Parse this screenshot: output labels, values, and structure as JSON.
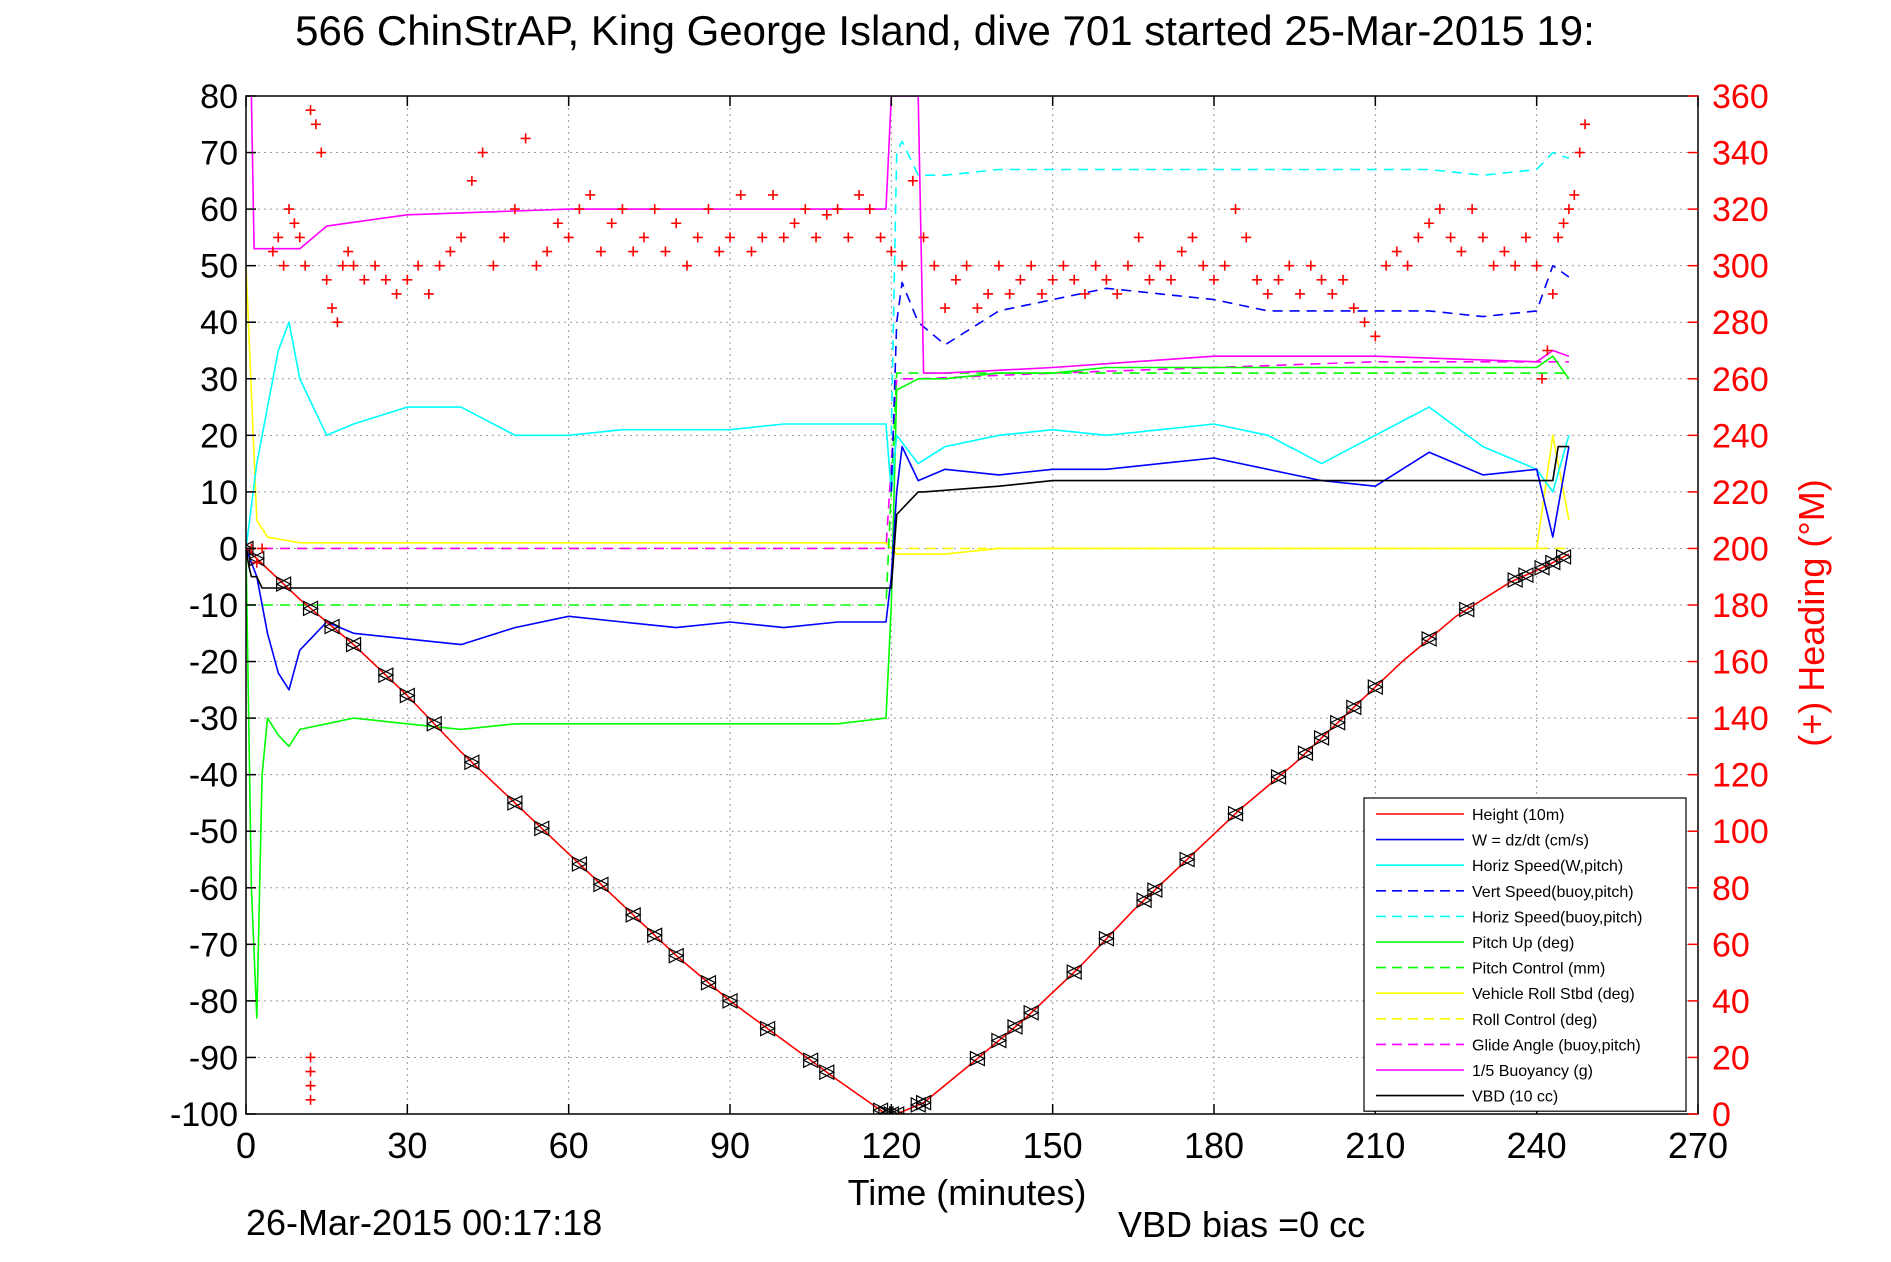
{
  "chart_data": {
    "type": "line",
    "title": "566 ChinStrAP, King George Island, dive 701 started 25-Mar-2015 19:",
    "xlabel": "Time (minutes)",
    "ylabel_right": "(+) Heading (°M)",
    "xlim": [
      0,
      270
    ],
    "ylim": [
      -100,
      80
    ],
    "ylim_right": [
      0,
      360
    ],
    "x_ticks": [
      "0",
      "30",
      "60",
      "90",
      "120",
      "150",
      "180",
      "210",
      "240",
      "270"
    ],
    "y_ticks": [
      "80",
      "70",
      "60",
      "50",
      "40",
      "30",
      "20",
      "10",
      "0",
      "-10",
      "-20",
      "-30",
      "-40",
      "-50",
      "-60",
      "-70",
      "-80",
      "-90",
      "-100"
    ],
    "y_right_ticks": [
      "360",
      "340",
      "320",
      "300",
      "280",
      "260",
      "240",
      "220",
      "200",
      "180",
      "160",
      "140",
      "120",
      "100",
      "80",
      "60",
      "40",
      "20",
      "0"
    ],
    "grid": true,
    "legend_position": "bottom-right",
    "footer_date": "26-Mar-2015 00:17:18",
    "footer_vbd": "VBD bias =0 cc",
    "colors": {
      "red": "#ff0000",
      "blue": "#0000ff",
      "cyan": "#00ffff",
      "green": "#00ff00",
      "yellow": "#ffff00",
      "magenta": "#ff00ff",
      "black": "#000000"
    },
    "series": [
      {
        "name": "Height (10m)",
        "color": "#ff0000",
        "dash": false,
        "x": [
          0,
          10,
          20,
          30,
          40,
          50,
          60,
          70,
          80,
          90,
          100,
          110,
          119,
          121,
          126,
          135,
          145,
          155,
          165,
          175,
          185,
          195,
          205,
          215,
          225,
          235,
          242,
          246
        ],
        "y": [
          0,
          -9,
          -17,
          -26,
          -36,
          -45,
          -54,
          -63,
          -72,
          -80,
          -87,
          -94,
          -100,
          -100,
          -98,
          -91,
          -83,
          -74,
          -64,
          -55,
          -46,
          -38,
          -29,
          -20,
          -12,
          -6,
          -3,
          -1
        ]
      },
      {
        "name": "W = dz/dt (cm/s)",
        "color": "#0000ff",
        "dash": false,
        "x": [
          0,
          2,
          4,
          6,
          8,
          10,
          15,
          20,
          30,
          40,
          50,
          60,
          70,
          80,
          90,
          100,
          110,
          119,
          120,
          121,
          122,
          125,
          130,
          140,
          150,
          160,
          170,
          180,
          190,
          200,
          210,
          220,
          230,
          240,
          243,
          246
        ],
        "y": [
          0,
          -5,
          -15,
          -22,
          -25,
          -18,
          -13,
          -15,
          -16,
          -17,
          -14,
          -12,
          -13,
          -14,
          -13,
          -14,
          -13,
          -13,
          -5,
          10,
          18,
          12,
          14,
          13,
          14,
          14,
          15,
          16,
          14,
          12,
          11,
          17,
          13,
          14,
          2,
          18
        ]
      },
      {
        "name": "Horiz Speed(W,pitch)",
        "color": "#00ffff",
        "dash": false,
        "x": [
          0,
          2,
          4,
          6,
          8,
          10,
          15,
          20,
          30,
          40,
          50,
          60,
          70,
          80,
          90,
          100,
          110,
          119,
          120,
          121,
          125,
          130,
          140,
          150,
          160,
          170,
          180,
          190,
          200,
          210,
          220,
          230,
          240,
          243,
          246
        ],
        "y": [
          0,
          15,
          25,
          35,
          40,
          30,
          20,
          22,
          25,
          25,
          20,
          20,
          21,
          21,
          21,
          22,
          22,
          22,
          10,
          20,
          15,
          18,
          20,
          21,
          20,
          21,
          22,
          20,
          15,
          20,
          25,
          18,
          14,
          10,
          20
        ]
      },
      {
        "name": "Vert Speed(buoy,pitch)",
        "color": "#0000ff",
        "dash": true,
        "x": [
          120,
          121,
          122,
          125,
          130,
          140,
          150,
          160,
          170,
          180,
          190,
          200,
          210,
          220,
          230,
          240,
          243,
          246
        ],
        "y": [
          10,
          40,
          47,
          40,
          36,
          42,
          44,
          46,
          45,
          44,
          42,
          42,
          42,
          42,
          41,
          42,
          50,
          48
        ]
      },
      {
        "name": "Horiz Speed(buoy,pitch)",
        "color": "#00ffff",
        "dash": true,
        "x": [
          120,
          121,
          122,
          125,
          130,
          140,
          150,
          160,
          170,
          180,
          190,
          200,
          210,
          220,
          230,
          240,
          243,
          246
        ],
        "y": [
          20,
          70,
          72,
          66,
          66,
          67,
          67,
          67,
          67,
          67,
          67,
          67,
          67,
          67,
          66,
          67,
          70,
          69
        ]
      },
      {
        "name": "Pitch Up (deg)",
        "color": "#00ff00",
        "dash": false,
        "x": [
          0,
          1,
          2,
          3,
          4,
          6,
          8,
          10,
          15,
          20,
          30,
          40,
          50,
          60,
          70,
          80,
          90,
          100,
          110,
          119,
          120,
          121,
          125,
          130,
          140,
          150,
          160,
          170,
          180,
          190,
          200,
          210,
          220,
          230,
          240,
          243,
          246
        ],
        "y": [
          0,
          -60,
          -83,
          -40,
          -30,
          -33,
          -35,
          -32,
          -31,
          -30,
          -31,
          -32,
          -31,
          -31,
          -31,
          -31,
          -31,
          -31,
          -31,
          -30,
          -10,
          28,
          30,
          30,
          31,
          31,
          32,
          32,
          32,
          32,
          32,
          32,
          32,
          32,
          32,
          34,
          30
        ]
      },
      {
        "name": "Pitch Control (mm)",
        "color": "#00ff00",
        "dash": true,
        "x": [
          0,
          2,
          4,
          10,
          30,
          60,
          90,
          119,
          121,
          125,
          150,
          180,
          210,
          240,
          246
        ],
        "y": [
          -10,
          -10,
          -10,
          -10,
          -10,
          -10,
          -10,
          -10,
          31,
          31,
          31,
          31,
          31,
          31,
          31
        ]
      },
      {
        "name": "Vehicle Roll Stbd (deg)",
        "color": "#ffff00",
        "dash": false,
        "x": [
          0,
          2,
          4,
          10,
          20,
          30,
          40,
          50,
          60,
          70,
          80,
          90,
          100,
          110,
          119,
          121,
          125,
          130,
          140,
          150,
          160,
          170,
          180,
          190,
          200,
          210,
          220,
          230,
          240,
          243,
          246
        ],
        "y": [
          50,
          5,
          2,
          1,
          1,
          1,
          1,
          1,
          1,
          1,
          1,
          1,
          1,
          1,
          1,
          -1,
          -1,
          -1,
          0,
          0,
          0,
          0,
          0,
          0,
          0,
          0,
          0,
          0,
          0,
          20,
          5
        ]
      },
      {
        "name": "Roll Control (deg)",
        "color": "#ffff00",
        "dash": true,
        "x": [
          0,
          30,
          60,
          90,
          119,
          121,
          150,
          180,
          210,
          240,
          246
        ],
        "y": [
          0,
          0,
          0,
          0,
          0,
          0,
          0,
          0,
          0,
          0,
          0
        ]
      },
      {
        "name": "Glide Angle (buoy,pitch)",
        "color": "#ff00ff",
        "dash": true,
        "x": [
          0,
          30,
          60,
          90,
          119,
          121,
          125,
          150,
          180,
          210,
          240,
          246
        ],
        "y": [
          0,
          0,
          0,
          0,
          0,
          30,
          30,
          31,
          32,
          33,
          33,
          33
        ]
      },
      {
        "name": "1/5 Buoyancy (g)",
        "color": "#ff00ff",
        "dash": false,
        "x": [
          0,
          1,
          1.5,
          5,
          10,
          15,
          30,
          60,
          90,
          119,
          120,
          125,
          126,
          130,
          150,
          180,
          210,
          240,
          243,
          246
        ],
        "y": [
          80,
          80,
          53,
          53,
          53,
          57,
          59,
          60,
          60,
          60,
          80,
          80,
          31,
          31,
          32,
          34,
          34,
          33,
          35,
          34
        ]
      },
      {
        "name": "VBD (10 cc)",
        "color": "#000000",
        "dash": false,
        "x": [
          0,
          0.5,
          1,
          2,
          2.5,
          3,
          30,
          60,
          90,
          119,
          120,
          121,
          125,
          126,
          140,
          150,
          160,
          170,
          180,
          200,
          210,
          220,
          230,
          235,
          236,
          240,
          243,
          244,
          246
        ],
        "y": [
          0,
          -3,
          -5,
          -5,
          -6,
          -7,
          -7,
          -7,
          -7,
          -7,
          -7,
          6,
          10,
          10,
          11,
          12,
          12,
          12,
          12,
          12,
          12,
          12,
          12,
          12,
          12,
          12,
          12,
          18,
          18
        ]
      }
    ],
    "heading_points": [
      [
        1,
        200
      ],
      [
        2,
        195
      ],
      [
        3,
        200
      ],
      [
        5,
        305
      ],
      [
        6,
        310
      ],
      [
        7,
        300
      ],
      [
        8,
        320
      ],
      [
        9,
        315
      ],
      [
        10,
        310
      ],
      [
        11,
        300
      ],
      [
        12,
        355
      ],
      [
        13,
        350
      ],
      [
        14,
        340
      ],
      [
        15,
        295
      ],
      [
        16,
        285
      ],
      [
        17,
        280
      ],
      [
        18,
        300
      ],
      [
        19,
        305
      ],
      [
        20,
        300
      ],
      [
        22,
        295
      ],
      [
        24,
        300
      ],
      [
        26,
        295
      ],
      [
        28,
        290
      ],
      [
        30,
        295
      ],
      [
        32,
        300
      ],
      [
        34,
        290
      ],
      [
        36,
        300
      ],
      [
        38,
        305
      ],
      [
        40,
        310
      ],
      [
        42,
        330
      ],
      [
        44,
        340
      ],
      [
        46,
        300
      ],
      [
        48,
        310
      ],
      [
        50,
        320
      ],
      [
        52,
        345
      ],
      [
        54,
        300
      ],
      [
        56,
        305
      ],
      [
        58,
        315
      ],
      [
        60,
        310
      ],
      [
        62,
        320
      ],
      [
        64,
        325
      ],
      [
        66,
        305
      ],
      [
        68,
        315
      ],
      [
        70,
        320
      ],
      [
        72,
        305
      ],
      [
        74,
        310
      ],
      [
        76,
        320
      ],
      [
        78,
        305
      ],
      [
        80,
        315
      ],
      [
        82,
        300
      ],
      [
        84,
        310
      ],
      [
        86,
        320
      ],
      [
        88,
        305
      ],
      [
        90,
        310
      ],
      [
        92,
        325
      ],
      [
        94,
        305
      ],
      [
        96,
        310
      ],
      [
        98,
        325
      ],
      [
        100,
        310
      ],
      [
        102,
        315
      ],
      [
        104,
        320
      ],
      [
        106,
        310
      ],
      [
        108,
        318
      ],
      [
        110,
        320
      ],
      [
        112,
        310
      ],
      [
        114,
        325
      ],
      [
        116,
        320
      ],
      [
        118,
        310
      ],
      [
        120,
        305
      ],
      [
        122,
        300
      ],
      [
        124,
        330
      ],
      [
        126,
        310
      ],
      [
        128,
        300
      ],
      [
        130,
        285
      ],
      [
        132,
        295
      ],
      [
        134,
        300
      ],
      [
        136,
        285
      ],
      [
        138,
        290
      ],
      [
        140,
        300
      ],
      [
        142,
        290
      ],
      [
        144,
        295
      ],
      [
        146,
        300
      ],
      [
        148,
        290
      ],
      [
        150,
        295
      ],
      [
        152,
        300
      ],
      [
        154,
        295
      ],
      [
        156,
        290
      ],
      [
        158,
        300
      ],
      [
        160,
        295
      ],
      [
        162,
        290
      ],
      [
        164,
        300
      ],
      [
        166,
        310
      ],
      [
        168,
        295
      ],
      [
        170,
        300
      ],
      [
        172,
        295
      ],
      [
        174,
        305
      ],
      [
        176,
        310
      ],
      [
        178,
        300
      ],
      [
        180,
        295
      ],
      [
        182,
        300
      ],
      [
        184,
        320
      ],
      [
        186,
        310
      ],
      [
        188,
        295
      ],
      [
        190,
        290
      ],
      [
        192,
        295
      ],
      [
        194,
        300
      ],
      [
        196,
        290
      ],
      [
        198,
        300
      ],
      [
        200,
        295
      ],
      [
        202,
        290
      ],
      [
        204,
        295
      ],
      [
        206,
        285
      ],
      [
        208,
        280
      ],
      [
        210,
        275
      ],
      [
        212,
        300
      ],
      [
        214,
        305
      ],
      [
        216,
        300
      ],
      [
        218,
        310
      ],
      [
        220,
        315
      ],
      [
        222,
        320
      ],
      [
        224,
        310
      ],
      [
        226,
        305
      ],
      [
        228,
        320
      ],
      [
        230,
        310
      ],
      [
        232,
        300
      ],
      [
        234,
        305
      ],
      [
        236,
        300
      ],
      [
        238,
        310
      ],
      [
        240,
        300
      ],
      [
        241,
        260
      ],
      [
        242,
        270
      ],
      [
        243,
        290
      ],
      [
        244,
        310
      ],
      [
        245,
        315
      ],
      [
        246,
        320
      ],
      [
        247,
        325
      ],
      [
        248,
        340
      ],
      [
        249,
        350
      ],
      [
        12,
        20
      ],
      [
        12,
        15
      ],
      [
        12,
        10
      ],
      [
        12,
        5
      ]
    ],
    "height_markers_x": [
      0,
      2,
      7,
      12,
      16,
      20,
      26,
      30,
      35,
      42,
      50,
      55,
      62,
      66,
      72,
      76,
      80,
      86,
      90,
      97,
      105,
      108,
      118,
      119,
      120,
      121,
      125,
      126,
      136,
      140,
      143,
      146,
      154,
      160,
      167,
      169,
      175,
      184,
      192,
      197,
      200,
      203,
      206,
      210,
      220,
      227,
      236,
      238,
      241,
      243,
      245
    ]
  }
}
